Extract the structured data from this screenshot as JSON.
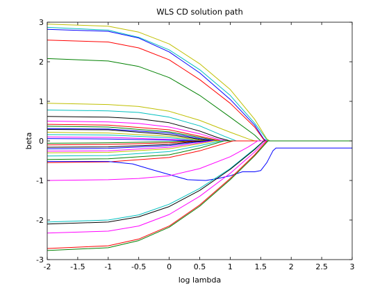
{
  "chart_data": {
    "type": "line",
    "title": "WLS CD  solution path",
    "xlabel": "log lambda",
    "ylabel": "beta",
    "xlim": [
      -2,
      3
    ],
    "ylim": [
      -3,
      3
    ],
    "grid": false,
    "legend": "none",
    "xticks": [
      "-2",
      "-1.5",
      "-1",
      "-0.5",
      "0",
      "0.5",
      "1",
      "1.5",
      "2",
      "2.5",
      "3"
    ],
    "yticks": [
      "-3",
      "-2",
      "-1",
      "0",
      "1",
      "2",
      "3"
    ],
    "series": [
      {
        "color": "#bfbf00",
        "points": [
          [
            -2,
            2.95
          ],
          [
            -1,
            2.9
          ],
          [
            -0.5,
            2.75
          ],
          [
            0,
            2.45
          ],
          [
            0.5,
            1.95
          ],
          [
            1,
            1.3
          ],
          [
            1.4,
            0.55
          ],
          [
            1.6,
            0.05
          ],
          [
            1.65,
            0
          ],
          [
            3,
            0
          ]
        ]
      },
      {
        "color": "#00bfbf",
        "points": [
          [
            -2,
            2.87
          ],
          [
            -1,
            2.8
          ],
          [
            -0.5,
            2.62
          ],
          [
            0,
            2.3
          ],
          [
            0.5,
            1.8
          ],
          [
            1,
            1.15
          ],
          [
            1.4,
            0.45
          ],
          [
            1.6,
            0.03
          ],
          [
            1.63,
            0
          ],
          [
            3,
            0
          ]
        ]
      },
      {
        "color": "#0000ff",
        "points": [
          [
            -2,
            2.82
          ],
          [
            -1,
            2.77
          ],
          [
            -0.5,
            2.6
          ],
          [
            0,
            2.25
          ],
          [
            0.5,
            1.72
          ],
          [
            1,
            1.05
          ],
          [
            1.4,
            0.4
          ],
          [
            1.55,
            0.05
          ],
          [
            1.6,
            0
          ],
          [
            3,
            0
          ]
        ]
      },
      {
        "color": "#ff0000",
        "points": [
          [
            -2,
            2.55
          ],
          [
            -1,
            2.5
          ],
          [
            -0.5,
            2.35
          ],
          [
            0,
            2.05
          ],
          [
            0.5,
            1.55
          ],
          [
            1,
            0.95
          ],
          [
            1.4,
            0.35
          ],
          [
            1.55,
            0.03
          ],
          [
            1.58,
            0
          ],
          [
            3,
            0
          ]
        ]
      },
      {
        "color": "#008000",
        "points": [
          [
            -2,
            2.08
          ],
          [
            -1,
            2.02
          ],
          [
            -0.5,
            1.88
          ],
          [
            0,
            1.6
          ],
          [
            0.5,
            1.15
          ],
          [
            1,
            0.6
          ],
          [
            1.4,
            0.15
          ],
          [
            1.5,
            0
          ],
          [
            3,
            0
          ]
        ]
      },
      {
        "color": "#bfbf00",
        "points": [
          [
            -2,
            0.95
          ],
          [
            -1,
            0.92
          ],
          [
            -0.5,
            0.87
          ],
          [
            0,
            0.75
          ],
          [
            0.5,
            0.52
          ],
          [
            1,
            0.22
          ],
          [
            1.3,
            0.05
          ],
          [
            1.4,
            0
          ],
          [
            3,
            0
          ]
        ]
      },
      {
        "color": "#00bfbf",
        "points": [
          [
            -2,
            0.78
          ],
          [
            -1,
            0.76
          ],
          [
            -0.5,
            0.72
          ],
          [
            0,
            0.6
          ],
          [
            0.5,
            0.38
          ],
          [
            0.9,
            0.12
          ],
          [
            1.1,
            0
          ],
          [
            3,
            0
          ]
        ]
      },
      {
        "color": "#000000",
        "points": [
          [
            -2,
            0.62
          ],
          [
            -1,
            0.6
          ],
          [
            -0.5,
            0.56
          ],
          [
            0,
            0.46
          ],
          [
            0.5,
            0.25
          ],
          [
            0.8,
            0.08
          ],
          [
            1,
            0
          ],
          [
            3,
            0
          ]
        ]
      },
      {
        "color": "#ff00ff",
        "points": [
          [
            -2,
            0.5
          ],
          [
            -1,
            0.48
          ],
          [
            -0.5,
            0.44
          ],
          [
            0,
            0.35
          ],
          [
            0.5,
            0.18
          ],
          [
            0.8,
            0.04
          ],
          [
            0.95,
            0
          ],
          [
            3,
            0
          ]
        ]
      },
      {
        "color": "#ff0000",
        "points": [
          [
            -2,
            0.42
          ],
          [
            -1,
            0.4
          ],
          [
            0,
            0.28
          ],
          [
            0.5,
            0.12
          ],
          [
            0.85,
            0
          ],
          [
            3,
            0
          ]
        ]
      },
      {
        "color": "#008000",
        "points": [
          [
            -2,
            0.37
          ],
          [
            -1,
            0.35
          ],
          [
            0,
            0.23
          ],
          [
            0.5,
            0.09
          ],
          [
            0.8,
            0
          ],
          [
            3,
            0
          ]
        ]
      },
      {
        "color": "#0000ff",
        "points": [
          [
            -2,
            0.31
          ],
          [
            -1,
            0.3
          ],
          [
            0,
            0.2
          ],
          [
            0.5,
            0.06
          ],
          [
            0.75,
            0
          ],
          [
            3,
            0
          ]
        ]
      },
      {
        "color": "#000000",
        "points": [
          [
            -2,
            0.29
          ],
          [
            -1,
            0.28
          ],
          [
            0,
            0.16
          ],
          [
            0.5,
            0.04
          ],
          [
            0.7,
            0
          ],
          [
            3,
            0
          ]
        ]
      },
      {
        "color": "#bfbf00",
        "points": [
          [
            -2,
            0.22
          ],
          [
            -1,
            0.2
          ],
          [
            0,
            0.12
          ],
          [
            0.4,
            0.04
          ],
          [
            0.65,
            0
          ],
          [
            3,
            0
          ]
        ]
      },
      {
        "color": "#00bfbf",
        "points": [
          [
            -2,
            0.16
          ],
          [
            -1,
            0.15
          ],
          [
            0,
            0.08
          ],
          [
            0.4,
            0.02
          ],
          [
            0.6,
            0
          ],
          [
            3,
            0
          ]
        ]
      },
      {
        "color": "#ff00ff",
        "points": [
          [
            -2,
            0.1
          ],
          [
            -1,
            0.09
          ],
          [
            0,
            0.04
          ],
          [
            0.5,
            0
          ],
          [
            3,
            0
          ]
        ]
      },
      {
        "color": "#0000ff",
        "points": [
          [
            -2,
            0.06
          ],
          [
            -1,
            0.05
          ],
          [
            0,
            0.02
          ],
          [
            0.45,
            0
          ],
          [
            3,
            0
          ]
        ]
      },
      {
        "color": "#008000",
        "points": [
          [
            -2,
            -0.06
          ],
          [
            -1,
            -0.05
          ],
          [
            0,
            -0.02
          ],
          [
            0.45,
            0
          ],
          [
            3,
            0
          ]
        ]
      },
      {
        "color": "#ff0000",
        "points": [
          [
            -2,
            -0.1
          ],
          [
            -1,
            -0.09
          ],
          [
            0,
            -0.05
          ],
          [
            0.5,
            0
          ],
          [
            3,
            0
          ]
        ]
      },
      {
        "color": "#000000",
        "points": [
          [
            -2,
            -0.16
          ],
          [
            -1,
            -0.15
          ],
          [
            0,
            -0.09
          ],
          [
            0.4,
            -0.02
          ],
          [
            0.6,
            0
          ],
          [
            3,
            0
          ]
        ]
      },
      {
        "color": "#0000ff",
        "points": [
          [
            -2,
            -0.2
          ],
          [
            -1,
            -0.19
          ],
          [
            0,
            -0.12
          ],
          [
            0.4,
            -0.04
          ],
          [
            0.65,
            0
          ],
          [
            3,
            0
          ]
        ]
      },
      {
        "color": "#ff00ff",
        "points": [
          [
            -2,
            -0.26
          ],
          [
            -1,
            -0.25
          ],
          [
            0,
            -0.16
          ],
          [
            0.5,
            -0.05
          ],
          [
            0.7,
            0
          ],
          [
            3,
            0
          ]
        ]
      },
      {
        "color": "#bfbf00",
        "points": [
          [
            -2,
            -0.3
          ],
          [
            -1,
            -0.29
          ],
          [
            0,
            -0.2
          ],
          [
            0.5,
            -0.07
          ],
          [
            0.75,
            0
          ],
          [
            3,
            0
          ]
        ]
      },
      {
        "color": "#00bfbf",
        "points": [
          [
            -2,
            -0.38
          ],
          [
            -1,
            -0.37
          ],
          [
            0,
            -0.27
          ],
          [
            0.5,
            -0.12
          ],
          [
            0.85,
            0
          ],
          [
            3,
            0
          ]
        ]
      },
      {
        "color": "#008000",
        "points": [
          [
            -2,
            -0.47
          ],
          [
            -1,
            -0.45
          ],
          [
            0,
            -0.35
          ],
          [
            0.5,
            -0.18
          ],
          [
            0.9,
            0
          ],
          [
            3,
            0
          ]
        ]
      },
      {
        "color": "#ff0000",
        "points": [
          [
            -2,
            -0.55
          ],
          [
            -1,
            -0.53
          ],
          [
            0,
            -0.42
          ],
          [
            0.5,
            -0.25
          ],
          [
            1,
            -0.02
          ],
          [
            1.05,
            0
          ],
          [
            3,
            0
          ]
        ]
      },
      {
        "color": "#0000ff",
        "points": [
          [
            -2,
            -0.52
          ],
          [
            -1,
            -0.52
          ],
          [
            -0.6,
            -0.58
          ],
          [
            -0.3,
            -0.72
          ],
          [
            0,
            -0.85
          ],
          [
            0.3,
            -0.98
          ],
          [
            0.6,
            -1.0
          ],
          [
            0.8,
            -0.95
          ],
          [
            1.0,
            -0.88
          ],
          [
            1.2,
            -0.78
          ],
          [
            1.4,
            -0.78
          ],
          [
            1.5,
            -0.75
          ],
          [
            1.6,
            -0.55
          ],
          [
            1.7,
            -0.25
          ],
          [
            1.75,
            -0.18
          ],
          [
            3,
            -0.18
          ]
        ]
      },
      {
        "color": "#ff00ff",
        "points": [
          [
            -2,
            -1.0
          ],
          [
            -1,
            -0.98
          ],
          [
            -0.5,
            -0.95
          ],
          [
            0,
            -0.88
          ],
          [
            0.5,
            -0.7
          ],
          [
            1,
            -0.4
          ],
          [
            1.3,
            -0.15
          ],
          [
            1.45,
            0
          ],
          [
            3,
            0
          ]
        ]
      },
      {
        "color": "#00bfbf",
        "points": [
          [
            -2,
            -2.05
          ],
          [
            -1,
            -2.0
          ],
          [
            -0.5,
            -1.87
          ],
          [
            0,
            -1.6
          ],
          [
            0.5,
            -1.2
          ],
          [
            1,
            -0.7
          ],
          [
            1.4,
            -0.2
          ],
          [
            1.55,
            0
          ],
          [
            3,
            0
          ]
        ]
      },
      {
        "color": "#000000",
        "points": [
          [
            -2,
            -2.1
          ],
          [
            -1,
            -2.05
          ],
          [
            -0.5,
            -1.92
          ],
          [
            0,
            -1.66
          ],
          [
            0.5,
            -1.25
          ],
          [
            1,
            -0.72
          ],
          [
            1.4,
            -0.22
          ],
          [
            1.55,
            0
          ],
          [
            3,
            0
          ]
        ]
      },
      {
        "color": "#ff00ff",
        "points": [
          [
            -2,
            -2.33
          ],
          [
            -1,
            -2.28
          ],
          [
            -0.5,
            -2.15
          ],
          [
            0,
            -1.86
          ],
          [
            0.5,
            -1.4
          ],
          [
            1,
            -0.82
          ],
          [
            1.4,
            -0.28
          ],
          [
            1.58,
            0
          ],
          [
            3,
            0
          ]
        ]
      },
      {
        "color": "#ff0000",
        "points": [
          [
            -2,
            -2.72
          ],
          [
            -1,
            -2.65
          ],
          [
            -0.5,
            -2.48
          ],
          [
            0,
            -2.15
          ],
          [
            0.5,
            -1.62
          ],
          [
            1,
            -0.95
          ],
          [
            1.4,
            -0.35
          ],
          [
            1.6,
            0
          ],
          [
            3,
            0
          ]
        ]
      },
      {
        "color": "#008000",
        "points": [
          [
            -2,
            -2.77
          ],
          [
            -1,
            -2.7
          ],
          [
            -0.5,
            -2.52
          ],
          [
            0,
            -2.18
          ],
          [
            0.5,
            -1.65
          ],
          [
            1,
            -0.98
          ],
          [
            1.4,
            -0.38
          ],
          [
            1.62,
            0
          ],
          [
            3,
            0
          ]
        ]
      }
    ]
  }
}
